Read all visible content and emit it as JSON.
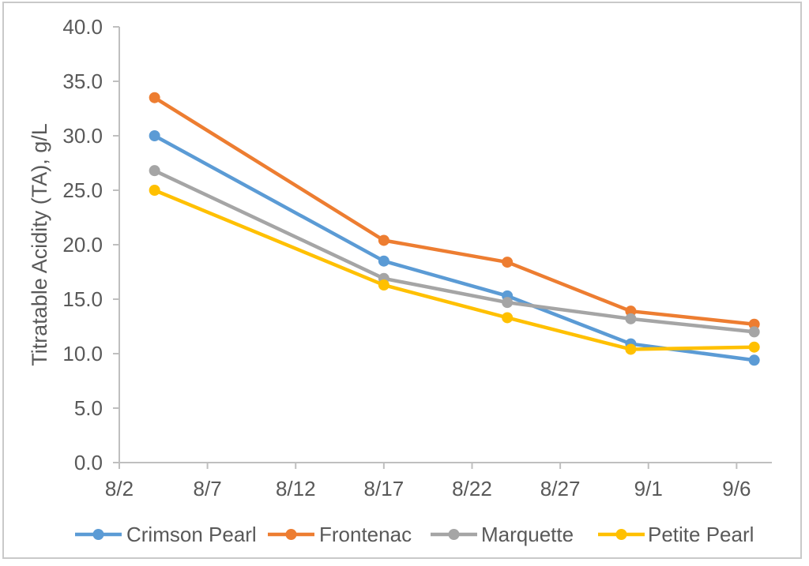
{
  "figure": {
    "background": "#FFFFFF",
    "border_color": "#C9C9C9"
  },
  "colors": {
    "tick_text": "#595959",
    "axis_line": "#BFBFBF",
    "axis_title_text": "#595959"
  },
  "chart_data": {
    "type": "line",
    "title": "",
    "xlabel": "",
    "ylabel": "Titratable Acidity (TA), g/L",
    "grid": false,
    "legend_position": "bottom",
    "ylim": [
      0,
      40
    ],
    "y_ticks": [
      0,
      5,
      10,
      15,
      20,
      25,
      30,
      35,
      40
    ],
    "y_tick_labels": [
      "0.0",
      "5.0",
      "10.0",
      "15.0",
      "20.0",
      "25.0",
      "30.0",
      "35.0",
      "40.0"
    ],
    "x_axis_range_days": [
      0,
      37
    ],
    "x_tick_days": [
      0,
      5,
      10,
      15,
      20,
      25,
      30,
      35
    ],
    "x_tick_labels": [
      "8/2",
      "8/7",
      "8/12",
      "8/17",
      "8/22",
      "8/27",
      "9/1",
      "9/6"
    ],
    "x_categories": [
      "8/4",
      "8/17",
      "8/24",
      "8/31",
      "9/7"
    ],
    "x_days": [
      2,
      15,
      22,
      29,
      36
    ],
    "series": [
      {
        "name": "Crimson Pearl",
        "color": "#5B9BD5",
        "values": [
          30.0,
          18.5,
          15.3,
          10.9,
          9.4
        ]
      },
      {
        "name": "Frontenac",
        "color": "#ED7D31",
        "values": [
          33.5,
          20.4,
          18.4,
          13.9,
          12.7
        ]
      },
      {
        "name": "Marquette",
        "color": "#A5A5A5",
        "values": [
          26.8,
          16.9,
          14.7,
          13.2,
          12.0
        ]
      },
      {
        "name": "Petite Pearl",
        "color": "#FFC000",
        "values": [
          25.0,
          16.3,
          13.3,
          10.4,
          10.6
        ]
      }
    ]
  }
}
